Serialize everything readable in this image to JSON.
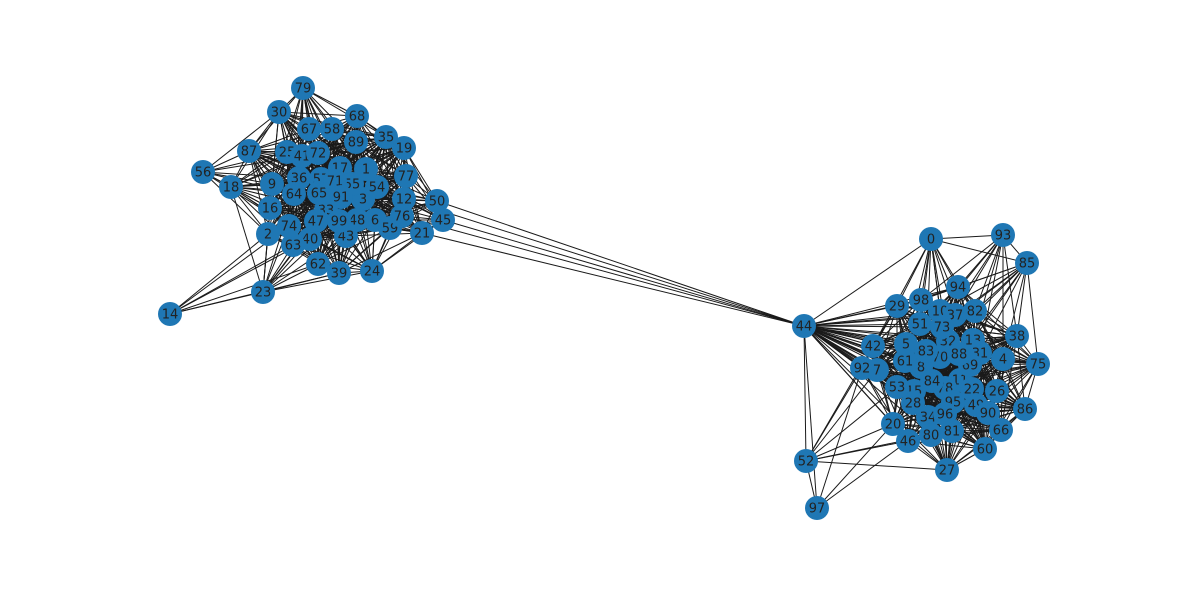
{
  "graph": {
    "node_color": "#1f77b4",
    "edge_color": "#1a1a1a",
    "label_color": "#222222",
    "nodes": [
      "0",
      "2",
      "3",
      "4",
      "5",
      "6",
      "7",
      "8",
      "9",
      "10",
      "11",
      "12",
      "13",
      "14",
      "15",
      "16",
      "17",
      "18",
      "19",
      "20",
      "21",
      "22",
      "23",
      "24",
      "25",
      "26",
      "27",
      "28",
      "29",
      "30",
      "31",
      "32",
      "33",
      "34",
      "35",
      "36",
      "37",
      "38",
      "39",
      "40",
      "41",
      "42",
      "43",
      "44",
      "45",
      "46",
      "47",
      "48",
      "49",
      "50",
      "51",
      "52",
      "53",
      "54",
      "55",
      "56",
      "57",
      "58",
      "59",
      "60",
      "61",
      "62",
      "63",
      "64",
      "65",
      "66",
      "67",
      "68",
      "69",
      "70",
      "71",
      "72",
      "73",
      "74",
      "75",
      "76",
      "77",
      "78",
      "79",
      "80",
      "81",
      "82",
      "83",
      "84",
      "85",
      "86",
      "87",
      "88",
      "89",
      "90",
      "91",
      "92",
      "93",
      "94",
      "95",
      "96",
      "97",
      "98",
      "99",
      "1"
    ]
  }
}
